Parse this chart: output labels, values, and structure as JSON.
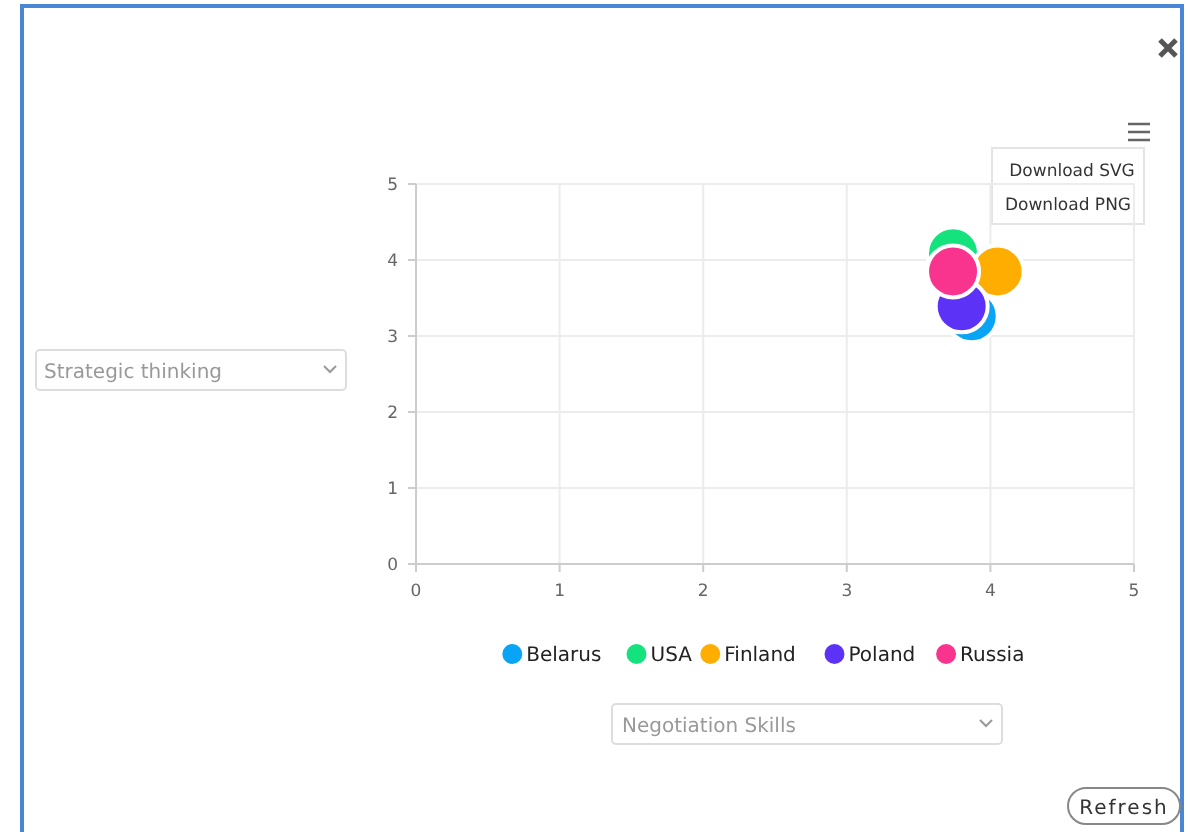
{
  "chart_data": {
    "type": "scatter",
    "xlim": [
      0,
      5
    ],
    "xticks": [
      0,
      1,
      2,
      3,
      4,
      5
    ],
    "ylim": [
      0,
      5
    ],
    "yticks": [
      0,
      1,
      2,
      3,
      4,
      5
    ],
    "grid": true,
    "legend": "bottom",
    "marker": "circle",
    "series": [
      {
        "name": "Belarus",
        "color": "#0aa4f6",
        "x": [
          3.87
        ],
        "values": [
          3.26
        ]
      },
      {
        "name": "USA",
        "color": "#14e37d",
        "x": [
          3.74
        ],
        "values": [
          4.09
        ]
      },
      {
        "name": "Finland",
        "color": "#ffae00",
        "x": [
          4.05
        ],
        "values": [
          3.85
        ]
      },
      {
        "name": "Poland",
        "color": "#5c33f6",
        "x": [
          3.8
        ],
        "values": [
          3.39
        ]
      },
      {
        "name": "Russia",
        "color": "#f8348e",
        "x": [
          3.74
        ],
        "values": [
          3.85
        ]
      }
    ],
    "annotations": [
      "Download SVG",
      "Download PNG",
      "Refresh",
      "Strategic thinking",
      "Negotiation Skills"
    ]
  }
}
